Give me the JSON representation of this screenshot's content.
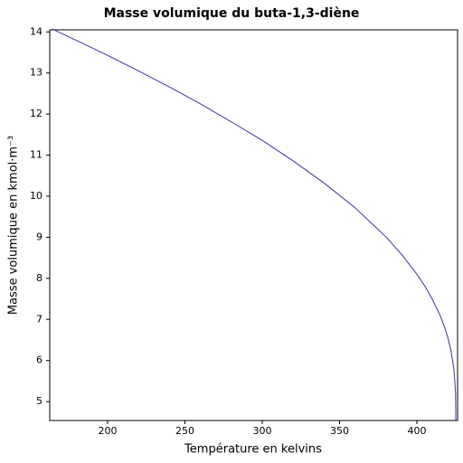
{
  "chart_data": {
    "type": "line",
    "title": "Masse volumique du buta-1,3-diène",
    "x_label": "Température en kelvins",
    "y_label": "Masse volumique en kmol·m⁻³",
    "x": [
      164.25,
      180,
      200,
      220,
      240,
      260,
      280,
      300,
      320,
      340,
      360,
      380,
      390,
      400,
      405,
      410,
      415,
      418,
      420,
      422,
      424,
      425,
      425.17
    ],
    "series": [
      {
        "color": "#3333aa",
        "values": [
          14.07,
          13.79,
          13.43,
          13.05,
          12.66,
          12.25,
          11.81,
          11.36,
          10.86,
          10.32,
          9.72,
          9.01,
          8.59,
          8.1,
          7.82,
          7.49,
          7.1,
          6.8,
          6.56,
          6.25,
          5.77,
          5.21,
          4.54
        ]
      }
    ],
    "xlim": [
      162.6,
      426.3
    ],
    "xticks": [
      200,
      250,
      300,
      350,
      400
    ],
    "ylim": [
      4.54,
      14.05
    ],
    "yticks": [
      5,
      6,
      7,
      8,
      9,
      10,
      11,
      12,
      13,
      14
    ],
    "grid": false
  }
}
